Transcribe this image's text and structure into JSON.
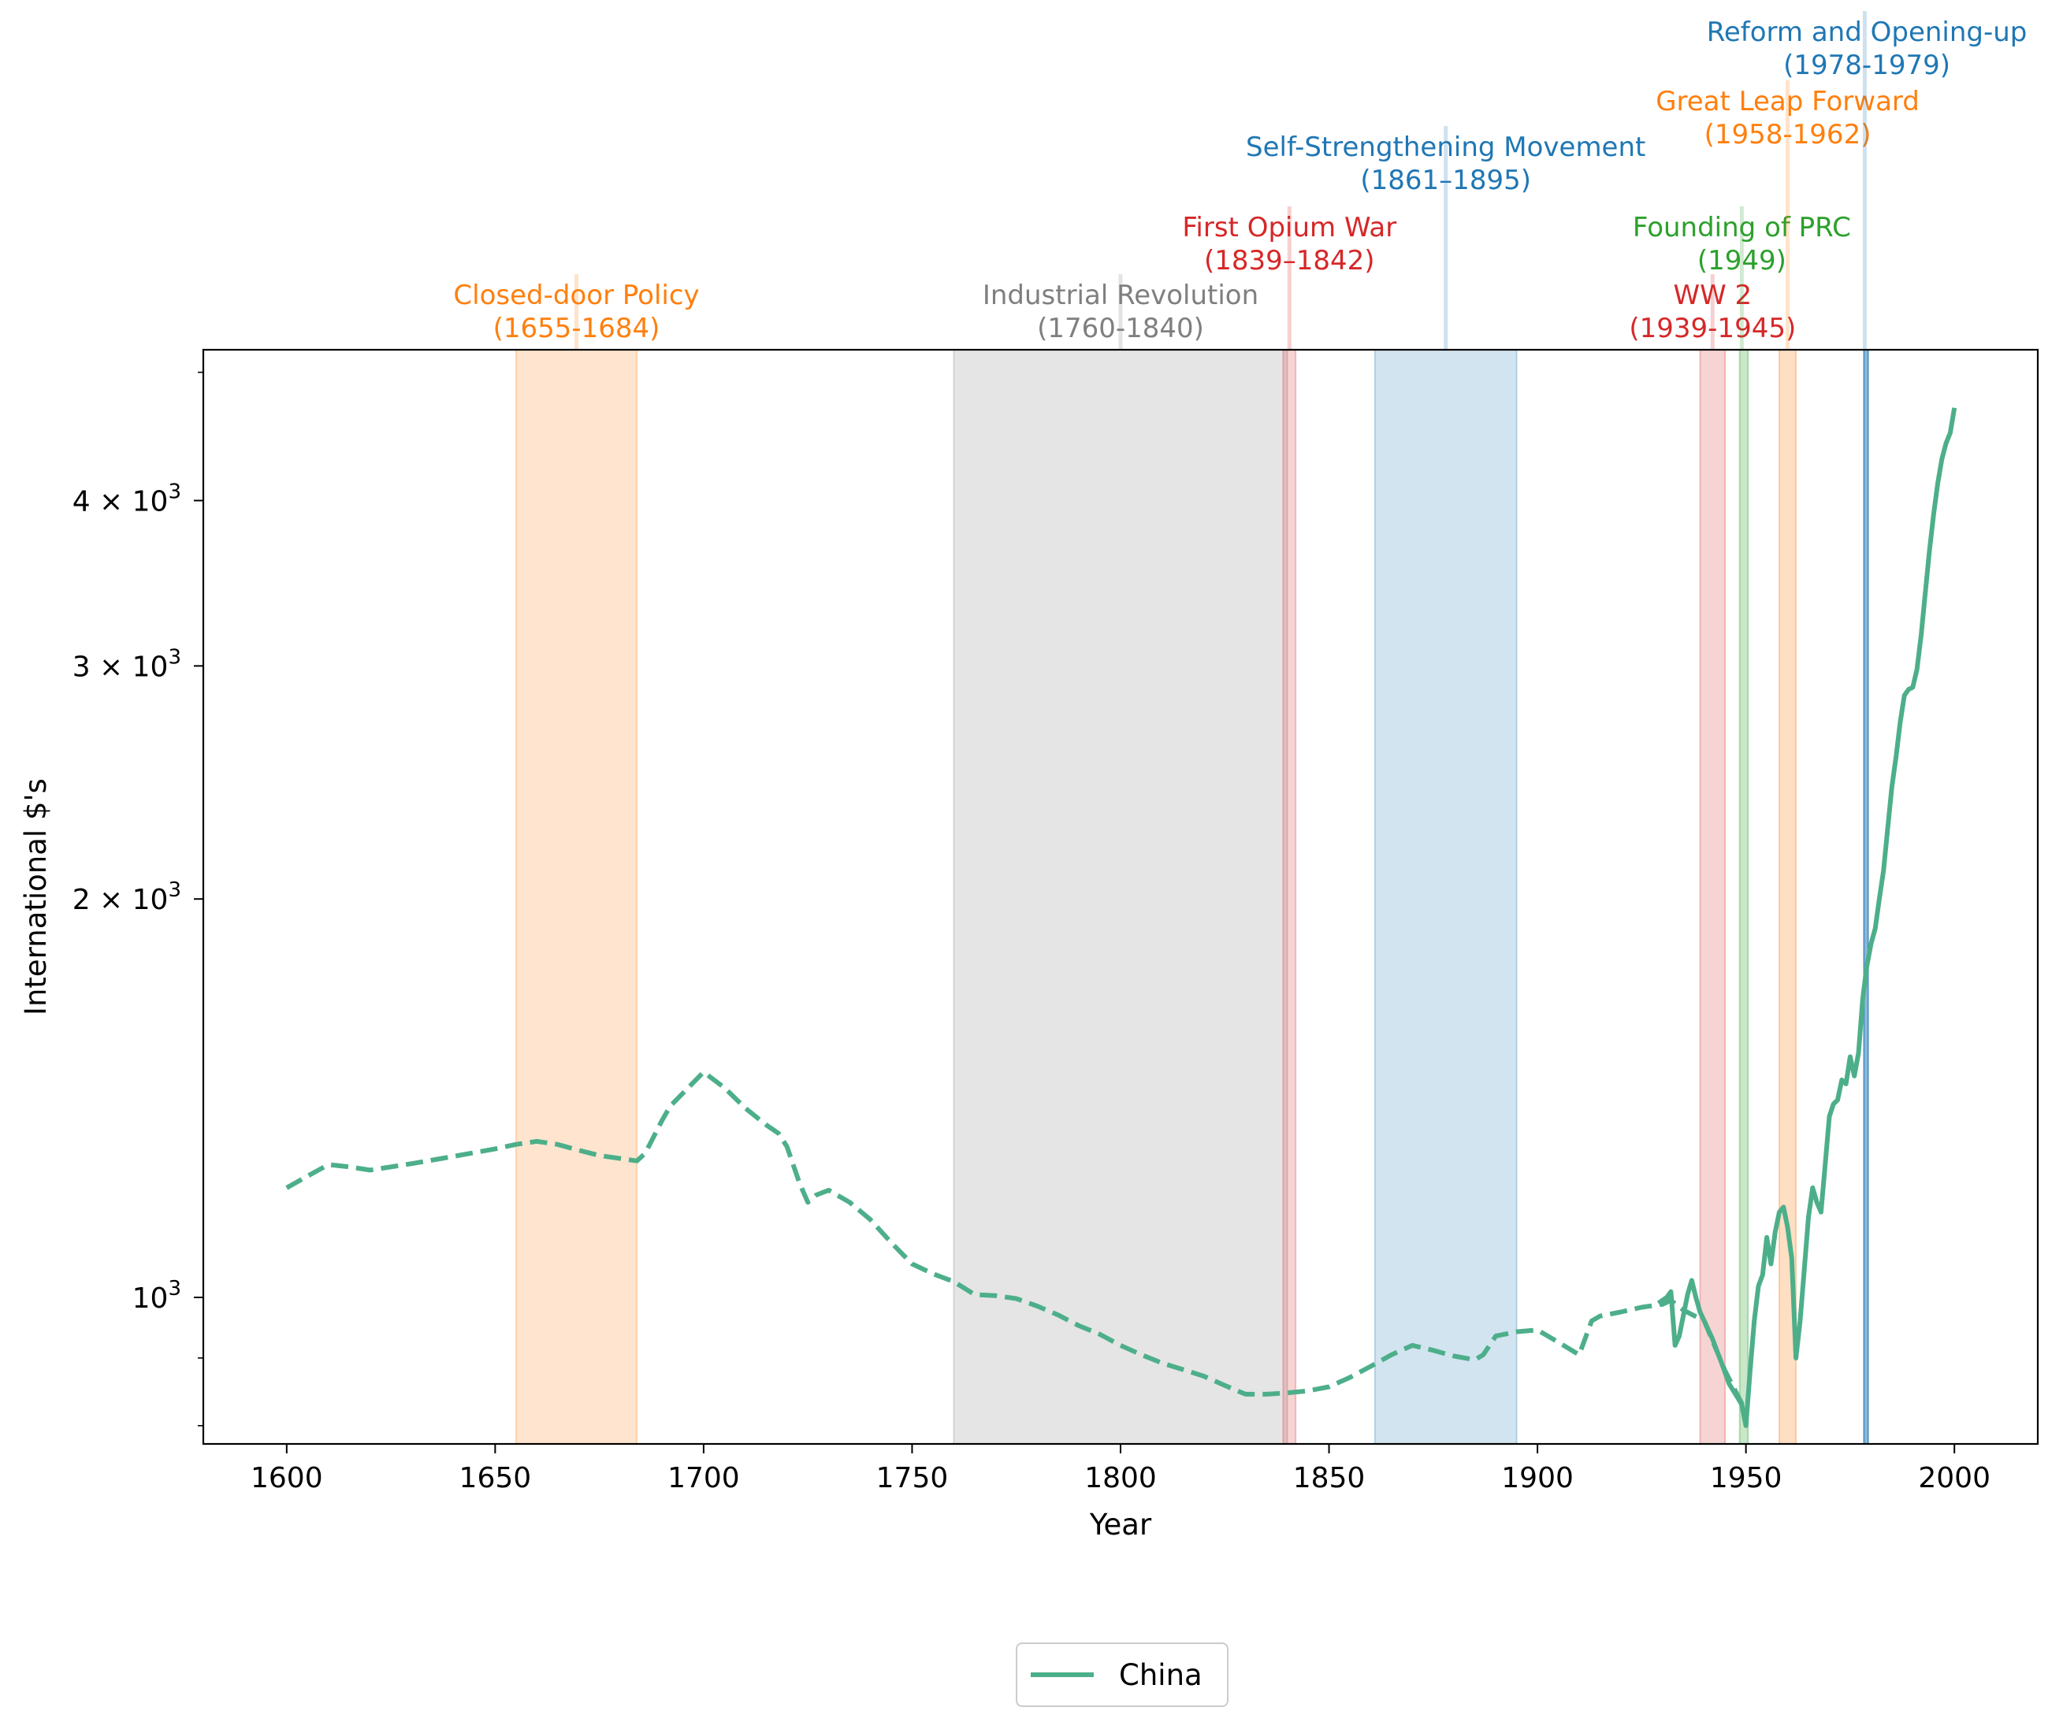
{
  "chart_data": {
    "type": "line",
    "xlabel": "Year",
    "ylabel": "International $'s",
    "xlim": [
      1580,
      2020
    ],
    "ylim": [
      775,
      5200
    ],
    "yscale": "log",
    "grid": false,
    "legend_position": "bottom-center",
    "x_ticks": [
      {
        "value": 1600,
        "label": "1600"
      },
      {
        "value": 1650,
        "label": "1650"
      },
      {
        "value": 1700,
        "label": "1700"
      },
      {
        "value": 1750,
        "label": "1750"
      },
      {
        "value": 1800,
        "label": "1800"
      },
      {
        "value": 1850,
        "label": "1850"
      },
      {
        "value": 1900,
        "label": "1900"
      },
      {
        "value": 1950,
        "label": "1950"
      },
      {
        "value": 2000,
        "label": "2000"
      }
    ],
    "y_ticks": [
      {
        "value": 1000,
        "base": "10",
        "exp": "3"
      },
      {
        "value": 2000,
        "base": "2 × 10",
        "exp": "3"
      },
      {
        "value": 3000,
        "base": "3 × 10",
        "exp": "3"
      },
      {
        "value": 4000,
        "base": "4 × 10",
        "exp": "3"
      }
    ],
    "y_minor_ticks": [
      800,
      900,
      5000
    ],
    "series": [
      {
        "name": "China",
        "color": "#4daf8a",
        "segments": [
          {
            "style": "dashed",
            "points": [
              [
                1600,
                1210
              ],
              [
                1605,
                1235
              ],
              [
                1610,
                1260
              ],
              [
                1615,
                1255
              ],
              [
                1620,
                1248
              ],
              [
                1630,
                1262
              ],
              [
                1640,
                1278
              ],
              [
                1650,
                1295
              ],
              [
                1655,
                1305
              ],
              [
                1660,
                1312
              ],
              [
                1665,
                1305
              ],
              [
                1670,
                1292
              ],
              [
                1675,
                1280
              ],
              [
                1684,
                1268
              ],
              [
                1686,
                1285
              ],
              [
                1690,
                1360
              ],
              [
                1692,
                1395
              ],
              [
                1700,
                1480
              ],
              [
                1705,
                1440
              ],
              [
                1710,
                1390
              ],
              [
                1715,
                1350
              ],
              [
                1718,
                1330
              ],
              [
                1720,
                1300
              ],
              [
                1723,
                1220
              ],
              [
                1725,
                1180
              ],
              [
                1727,
                1195
              ],
              [
                1730,
                1205
              ],
              [
                1735,
                1180
              ],
              [
                1740,
                1145
              ],
              [
                1745,
                1100
              ],
              [
                1750,
                1060
              ],
              [
                1755,
                1042
              ],
              [
                1760,
                1028
              ],
              [
                1765,
                1005
              ],
              [
                1770,
                1003
              ],
              [
                1775,
                998
              ],
              [
                1780,
                985
              ],
              [
                1785,
                970
              ],
              [
                1790,
                952
              ],
              [
                1795,
                938
              ],
              [
                1800,
                920
              ],
              [
                1805,
                905
              ],
              [
                1810,
                892
              ],
              [
                1815,
                882
              ],
              [
                1820,
                872
              ],
              [
                1825,
                858
              ],
              [
                1830,
                845
              ],
              [
                1835,
                845
              ],
              [
                1840,
                847
              ],
              [
                1845,
                850
              ],
              [
                1850,
                856
              ],
              [
                1855,
                870
              ],
              [
                1860,
                887
              ],
              [
                1865,
                905
              ],
              [
                1870,
                920
              ],
              [
                1875,
                912
              ],
              [
                1880,
                903
              ],
              [
                1885,
                897
              ],
              [
                1887,
                905
              ],
              [
                1890,
                935
              ],
              [
                1895,
                942
              ],
              [
                1900,
                945
              ],
              [
                1905,
                925
              ],
              [
                1910,
                905
              ],
              [
                1913,
                960
              ],
              [
                1915,
                968
              ],
              [
                1920,
                975
              ],
              [
                1925,
                983
              ],
              [
                1930,
                988
              ],
              [
                1932,
                995
              ],
              [
                1935,
                978
              ],
              [
                1940,
                960
              ],
              [
                1945,
                880
              ],
              [
                1950,
                820
              ]
            ]
          },
          {
            "style": "solid",
            "points": [
              [
                1929,
                990
              ],
              [
                1931,
                1000
              ],
              [
                1932,
                1010
              ],
              [
                1933,
                920
              ],
              [
                1934,
                935
              ],
              [
                1936,
                1005
              ],
              [
                1937,
                1030
              ],
              [
                1938,
                1000
              ],
              [
                1939,
                975
              ],
              [
                1940,
                960
              ],
              [
                1942,
                930
              ],
              [
                1944,
                895
              ],
              [
                1946,
                860
              ],
              [
                1948,
                840
              ],
              [
                1949,
                830
              ],
              [
                1950,
                800
              ],
              [
                1951,
                880
              ],
              [
                1952,
                960
              ],
              [
                1953,
                1020
              ],
              [
                1954,
                1040
              ],
              [
                1955,
                1110
              ],
              [
                1956,
                1060
              ],
              [
                1957,
                1120
              ],
              [
                1958,
                1160
              ],
              [
                1959,
                1170
              ],
              [
                1960,
                1130
              ],
              [
                1961,
                1070
              ],
              [
                1962,
                900
              ],
              [
                1963,
                960
              ],
              [
                1964,
                1050
              ],
              [
                1965,
                1150
              ],
              [
                1966,
                1210
              ],
              [
                1967,
                1180
              ],
              [
                1968,
                1160
              ],
              [
                1969,
                1260
              ],
              [
                1970,
                1370
              ],
              [
                1971,
                1400
              ],
              [
                1972,
                1410
              ],
              [
                1973,
                1460
              ],
              [
                1974,
                1450
              ],
              [
                1975,
                1520
              ],
              [
                1976,
                1470
              ],
              [
                1977,
                1530
              ],
              [
                1978,
                1680
              ],
              [
                1979,
                1780
              ],
              [
                1980,
                1850
              ],
              [
                1981,
                1900
              ],
              [
                1982,
                2000
              ],
              [
                1983,
                2100
              ],
              [
                1984,
                2260
              ],
              [
                1985,
                2430
              ],
              [
                1986,
                2560
              ],
              [
                1987,
                2720
              ],
              [
                1988,
                2850
              ],
              [
                1989,
                2880
              ],
              [
                1990,
                2890
              ],
              [
                1991,
                2980
              ],
              [
                1992,
                3160
              ],
              [
                1993,
                3400
              ],
              [
                1994,
                3660
              ],
              [
                1995,
                3900
              ],
              [
                1996,
                4120
              ],
              [
                1997,
                4300
              ],
              [
                1998,
                4420
              ],
              [
                1999,
                4500
              ],
              [
                2000,
                4700
              ]
            ]
          }
        ]
      }
    ],
    "spans": [
      {
        "start": 1655,
        "end": 1684,
        "color": "#ff7f0e",
        "opacity": 0.2
      },
      {
        "start": 1760,
        "end": 1840,
        "color": "#7f7f7f",
        "opacity": 0.2
      },
      {
        "start": 1839,
        "end": 1842,
        "color": "#d62728",
        "opacity": 0.2
      },
      {
        "start": 1861,
        "end": 1895,
        "color": "#1f77b4",
        "opacity": 0.2
      },
      {
        "start": 1939,
        "end": 1945,
        "color": "#d62728",
        "opacity": 0.2
      },
      {
        "start": 1948.5,
        "end": 1950.5,
        "color": "#2ca02c",
        "opacity": 0.25
      },
      {
        "start": 1958,
        "end": 1962,
        "color": "#ff7f0e",
        "opacity": 0.25
      },
      {
        "start": 1978.3,
        "end": 1979.3,
        "color": "#1f77b4",
        "opacity": 0.5
      }
    ],
    "annotations": [
      {
        "x": 1669.5,
        "line_x": 1669.5,
        "level": 0,
        "color": "#ff7f0e",
        "title": "Closed-door Policy",
        "years": "(1655-1684)"
      },
      {
        "x": 1800,
        "line_x": 1800,
        "level": 0,
        "color": "#7f7f7f",
        "title": "Industrial Revolution",
        "years": "(1760-1840)"
      },
      {
        "x": 1840.5,
        "line_x": 1840.5,
        "level": 1,
        "color": "#d62728",
        "title": "First Opium War",
        "years": "(1839–1842)"
      },
      {
        "x": 1878,
        "line_x": 1878,
        "level": 2,
        "color": "#1f77b4",
        "title": "Self-Strengthening Movement",
        "years": "(1861–1895)"
      },
      {
        "x": 1942,
        "line_x": 1942,
        "level": 0,
        "color": "#d62728",
        "title": "WW 2",
        "years": "(1939-1945)"
      },
      {
        "x": 1949,
        "line_x": 1949,
        "level": 1,
        "color": "#2ca02c",
        "title": "Founding of PRC",
        "years": "(1949)"
      },
      {
        "x": 1960,
        "line_x": 1960,
        "level": 3,
        "color": "#ff7f0e",
        "title": "Great Leap Forward",
        "years": "(1958-1962)"
      },
      {
        "x": 1979,
        "line_x": 1978.5,
        "level": 4,
        "color": "#1f77b4",
        "title": "Reform and Opening-up",
        "years": "(1978-1979)"
      }
    ]
  }
}
